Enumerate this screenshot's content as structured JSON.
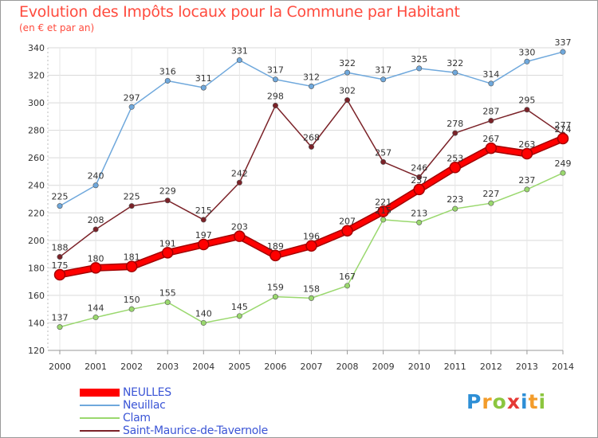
{
  "chart_data": {
    "type": "line",
    "title": "Evolution des Impôts locaux pour la Commune par Habitant",
    "subtitle": "(en € et par an)",
    "xlabel": "",
    "ylabel": "",
    "ylim": [
      120,
      340
    ],
    "yticks": [
      120,
      140,
      160,
      180,
      200,
      220,
      240,
      260,
      280,
      300,
      320,
      340
    ],
    "x": [
      "2000",
      "2001",
      "2002",
      "2003",
      "2004",
      "2005",
      "2006",
      "2007",
      "2008",
      "2009",
      "2010",
      "2011",
      "2012",
      "2013",
      "2014"
    ],
    "grid": true,
    "legend_position": "bottom-left",
    "series": [
      {
        "name": "NEULLES",
        "color": "#ff0000",
        "emphasis": true,
        "values": [
          175,
          180,
          181,
          191,
          197,
          203,
          189,
          196,
          207,
          221,
          237,
          253,
          267,
          263,
          274
        ]
      },
      {
        "name": "Neuillac",
        "color": "#6fa8dc",
        "values": [
          225,
          240,
          297,
          316,
          311,
          331,
          317,
          312,
          322,
          317,
          325,
          322,
          314,
          330,
          337
        ]
      },
      {
        "name": "Clam",
        "color": "#9ad86e",
        "values": [
          137,
          144,
          150,
          155,
          140,
          145,
          159,
          158,
          167,
          215,
          213,
          223,
          227,
          237,
          249
        ]
      },
      {
        "name": "Saint-Maurice-de-Tavernole",
        "color": "#7b2228",
        "values": [
          188,
          208,
          225,
          229,
          215,
          242,
          298,
          268,
          302,
          257,
          246,
          278,
          287,
          295,
          277
        ]
      }
    ]
  },
  "brand": {
    "letters": [
      "P",
      "r",
      "o",
      "x",
      "i",
      "t",
      "i"
    ],
    "colors": [
      "#2e8fd6",
      "#f39c2a",
      "#8cc63f",
      "#e53935",
      "#2e8fd6",
      "#f39c2a",
      "#8cc63f"
    ]
  }
}
